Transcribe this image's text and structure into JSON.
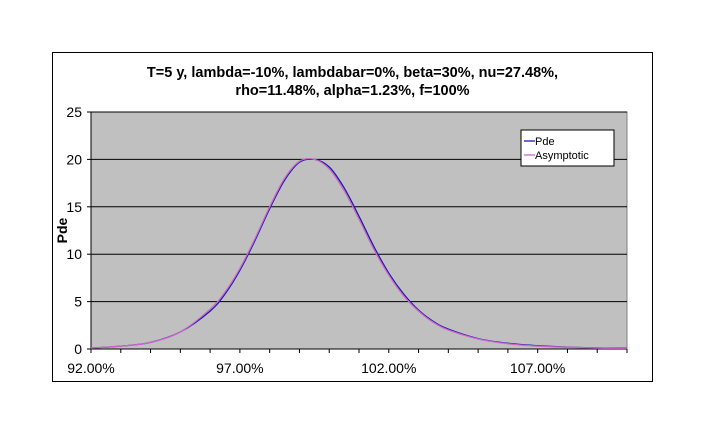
{
  "chart_data": {
    "type": "line",
    "title_lines": [
      "T=5 y, lambda=-10%, lambdabar=0%, beta=30%, nu=27.48%,",
      "rho=11.48%, alpha=1.23%, f=100%"
    ],
    "xlabel": "",
    "ylabel": "Pde",
    "xlim": [
      0.92,
      1.1
    ],
    "ylim": [
      0,
      25
    ],
    "x_ticks": [
      0.92,
      0.97,
      1.02,
      1.07
    ],
    "x_tick_labels": [
      "92.00%",
      "97.00%",
      "102.00%",
      "107.00%"
    ],
    "y_ticks": [
      0,
      5,
      10,
      15,
      20,
      25
    ],
    "y_tick_labels": [
      "0",
      "5",
      "10",
      "15",
      "20",
      "25"
    ],
    "grid": "horizontal",
    "plot_background": "#c0c0c0",
    "legend_position": "top-right",
    "series": [
      {
        "name": "Pde",
        "color": "#1a1aa6",
        "x": [
          0.92,
          0.93,
          0.94,
          0.95,
          0.96,
          0.965,
          0.97,
          0.975,
          0.98,
          0.985,
          0.99,
          0.995,
          1.0,
          1.005,
          1.01,
          1.015,
          1.02,
          1.025,
          1.03,
          1.035,
          1.04,
          1.05,
          1.06,
          1.07,
          1.08,
          1.09,
          1.1
        ],
        "y": [
          0.1,
          0.3,
          0.7,
          1.8,
          4.0,
          5.8,
          8.3,
          11.4,
          14.8,
          17.8,
          19.7,
          20.0,
          19.2,
          17.0,
          14.0,
          10.8,
          8.0,
          5.8,
          4.1,
          2.9,
          2.1,
          1.1,
          0.6,
          0.35,
          0.2,
          0.12,
          0.1
        ]
      },
      {
        "name": "Asymptotic",
        "color": "#cc66cc",
        "x": [
          0.92,
          0.93,
          0.94,
          0.95,
          0.96,
          0.965,
          0.97,
          0.975,
          0.98,
          0.985,
          0.99,
          0.995,
          1.0,
          1.005,
          1.01,
          1.015,
          1.02,
          1.025,
          1.03,
          1.035,
          1.04,
          1.05,
          1.06,
          1.07,
          1.08,
          1.09,
          1.1
        ],
        "y": [
          0.1,
          0.3,
          0.7,
          1.8,
          4.2,
          6.0,
          8.5,
          11.6,
          15.0,
          18.0,
          19.8,
          20.0,
          19.0,
          16.7,
          13.7,
          10.5,
          7.8,
          5.6,
          4.0,
          2.8,
          2.0,
          1.05,
          0.55,
          0.3,
          0.18,
          0.1,
          0.08
        ]
      }
    ]
  }
}
